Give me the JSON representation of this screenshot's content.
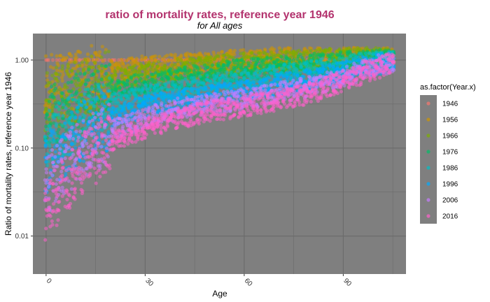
{
  "chart_data": {
    "type": "scatter",
    "title": "ratio of mortality rates, reference year 1946",
    "subtitle": "for All ages",
    "xlabel": "Age",
    "ylabel": "Ratio of mortality rates, reference year 1946",
    "x_scale": "linear",
    "y_scale": "log10",
    "xlim": [
      -4,
      109
    ],
    "ylim": [
      0.0037,
      2.0
    ],
    "x_ticks": [
      0,
      30,
      60,
      90
    ],
    "x_tick_labels": [
      "0",
      "30",
      "60",
      "90"
    ],
    "y_ticks": [
      0.01,
      0.1,
      1.0
    ],
    "y_tick_labels": [
      "0.01",
      "0.10",
      "1.00"
    ],
    "grid": true,
    "legend_title": "as.factor(Year.x)",
    "legend_position": "right",
    "colors": {
      "title": "#b3336e",
      "panel_background": "#7f7f7f",
      "grid": "#6a6a6a"
    },
    "series": [
      {
        "name": "1946",
        "color": "#f8766d",
        "x": [
          0,
          10,
          20,
          30,
          40,
          50,
          60,
          70,
          80,
          90,
          100,
          105
        ],
        "y": [
          1.0,
          1.0,
          1.0,
          1.0,
          1.0,
          1.0,
          1.0,
          1.0,
          1.0,
          1.0,
          1.0,
          1.0
        ]
      },
      {
        "name": "1956",
        "color": "#cd9600",
        "x": [
          0,
          10,
          20,
          30,
          40,
          50,
          60,
          70,
          80,
          90,
          100,
          105
        ],
        "y": [
          0.5,
          0.6,
          0.75,
          0.85,
          0.9,
          0.95,
          1.0,
          1.05,
          1.05,
          1.05,
          1.05,
          1.05
        ]
      },
      {
        "name": "1966",
        "color": "#7cae00",
        "x": [
          0,
          10,
          20,
          30,
          40,
          50,
          60,
          70,
          80,
          90,
          100,
          105
        ],
        "y": [
          0.35,
          0.45,
          0.6,
          0.7,
          0.78,
          0.85,
          0.92,
          0.98,
          1.0,
          1.05,
          1.05,
          1.05
        ]
      },
      {
        "name": "1976",
        "color": "#00be67",
        "x": [
          0,
          10,
          20,
          30,
          40,
          50,
          60,
          70,
          80,
          90,
          100,
          105
        ],
        "y": [
          0.22,
          0.32,
          0.45,
          0.55,
          0.62,
          0.7,
          0.78,
          0.85,
          0.9,
          0.95,
          1.0,
          1.0
        ]
      },
      {
        "name": "1986",
        "color": "#00bfc4",
        "x": [
          0,
          10,
          20,
          30,
          40,
          50,
          60,
          70,
          80,
          90,
          100,
          105
        ],
        "y": [
          0.12,
          0.2,
          0.32,
          0.4,
          0.45,
          0.52,
          0.6,
          0.68,
          0.75,
          0.85,
          0.95,
          1.0
        ]
      },
      {
        "name": "1996",
        "color": "#00a9ff",
        "x": [
          0,
          10,
          20,
          30,
          40,
          50,
          60,
          70,
          80,
          90,
          100,
          105
        ],
        "y": [
          0.07,
          0.14,
          0.22,
          0.3,
          0.35,
          0.4,
          0.45,
          0.52,
          0.6,
          0.75,
          0.9,
          0.95
        ]
      },
      {
        "name": "2006",
        "color": "#c77cff",
        "x": [
          0,
          10,
          20,
          30,
          40,
          50,
          60,
          70,
          80,
          90,
          100,
          105
        ],
        "y": [
          0.04,
          0.09,
          0.16,
          0.22,
          0.28,
          0.32,
          0.36,
          0.42,
          0.5,
          0.65,
          0.85,
          0.95
        ]
      },
      {
        "name": "2016",
        "color": "#ff61cc",
        "x": [
          0,
          10,
          20,
          30,
          40,
          50,
          60,
          70,
          80,
          90,
          100,
          105
        ],
        "y": [
          0.02,
          0.06,
          0.12,
          0.17,
          0.22,
          0.26,
          0.3,
          0.35,
          0.42,
          0.58,
          0.8,
          0.95
        ]
      }
    ]
  }
}
